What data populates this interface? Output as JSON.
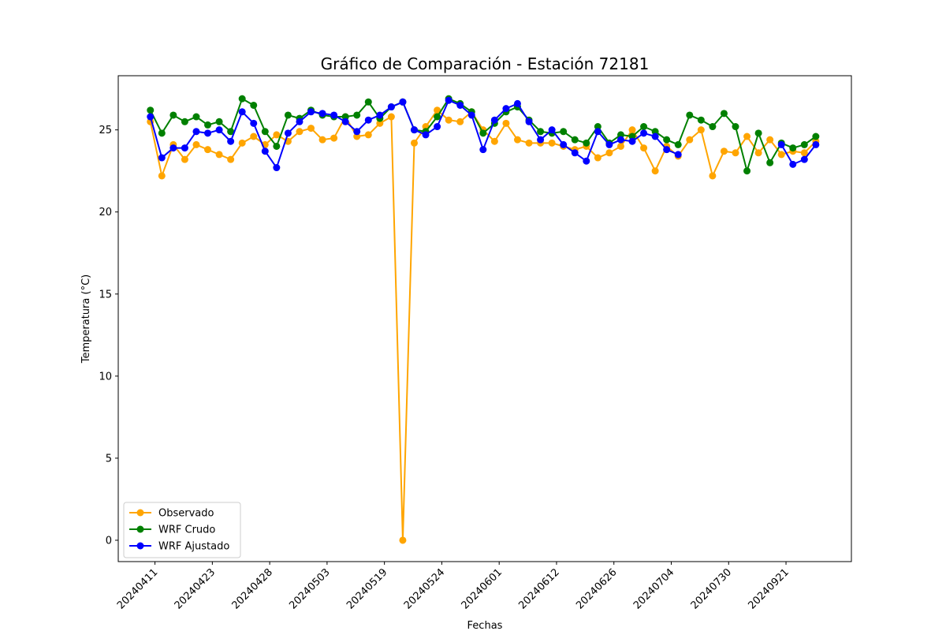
{
  "chart_data": {
    "type": "line",
    "title": "Gráfico de Comparación - Estación 72181",
    "xlabel": "Fechas",
    "ylabel": "Temperatura (°C)",
    "ylim": [
      -1.3,
      28.3
    ],
    "yticks": [
      0,
      5,
      10,
      15,
      20,
      25
    ],
    "xtick_labels": [
      "20240411",
      "20240423",
      "20240428",
      "20240503",
      "20240519",
      "20240524",
      "20240601",
      "20240612",
      "20240626",
      "20240704",
      "20240730",
      "20240921"
    ],
    "xtick_positions": [
      0.4,
      5.4,
      10.4,
      15.4,
      20.4,
      25.4,
      30.4,
      35.4,
      40.4,
      45.4,
      50.4,
      55.4
    ],
    "xlim": [
      -2.8,
      61.1
    ],
    "grid": false,
    "legend_position": "lower-left",
    "series": [
      {
        "name": "Observado",
        "color": "#ffa500",
        "values": [
          25.5,
          22.2,
          24.1,
          23.2,
          24.1,
          23.8,
          23.5,
          23.2,
          24.2,
          24.6,
          24.1,
          24.7,
          24.3,
          24.9,
          25.1,
          24.4,
          24.5,
          25.8,
          24.6,
          24.7,
          25.4,
          25.8,
          0.0,
          24.2,
          25.2,
          26.2,
          25.6,
          25.5,
          26.1,
          25.0,
          24.3,
          25.4,
          24.4,
          24.2,
          24.2,
          24.2,
          24.0,
          23.8,
          24.0,
          23.3,
          23.6,
          24.0,
          25.0,
          23.9,
          22.5,
          24.0,
          23.4,
          24.4,
          25.0,
          22.2,
          23.7,
          23.6,
          24.6,
          23.6,
          24.4,
          23.5,
          23.7,
          23.6,
          24.3
        ]
      },
      {
        "name": "WRF Crudo",
        "color": "#008000",
        "values": [
          26.2,
          24.8,
          25.9,
          25.5,
          25.8,
          25.3,
          25.5,
          24.9,
          26.9,
          26.5,
          24.9,
          24.0,
          25.9,
          25.7,
          26.2,
          25.9,
          25.8,
          25.8,
          25.9,
          26.7,
          25.7,
          26.4,
          26.7,
          25.0,
          24.9,
          25.8,
          26.9,
          26.6,
          26.1,
          24.8,
          25.4,
          26.1,
          26.4,
          25.6,
          24.9,
          24.8,
          24.9,
          24.4,
          24.2,
          25.2,
          24.2,
          24.7,
          24.6,
          25.2,
          24.9,
          24.4,
          24.1,
          25.9,
          25.6,
          25.2,
          26.0,
          25.2,
          22.5,
          24.8,
          23.0,
          24.2,
          23.9,
          24.1,
          24.6
        ]
      },
      {
        "name": "WRF Ajustado",
        "color": "#0000ff",
        "values": [
          25.8,
          23.3,
          23.9,
          23.9,
          24.9,
          24.8,
          25.0,
          24.3,
          26.1,
          25.4,
          23.7,
          22.7,
          24.8,
          25.5,
          26.1,
          26.0,
          25.9,
          25.5,
          24.9,
          25.6,
          25.9,
          26.4,
          26.7,
          25.0,
          24.7,
          25.2,
          26.8,
          26.5,
          25.9,
          23.8,
          25.6,
          26.3,
          26.6,
          25.5,
          24.4,
          25.0,
          24.1,
          23.6,
          23.1,
          24.9,
          24.1,
          24.4,
          24.3,
          24.8,
          24.6,
          23.8,
          23.5,
          null,
          null,
          null,
          null,
          null,
          null,
          null,
          null,
          24.1,
          22.9,
          23.2,
          24.1
        ]
      }
    ]
  }
}
